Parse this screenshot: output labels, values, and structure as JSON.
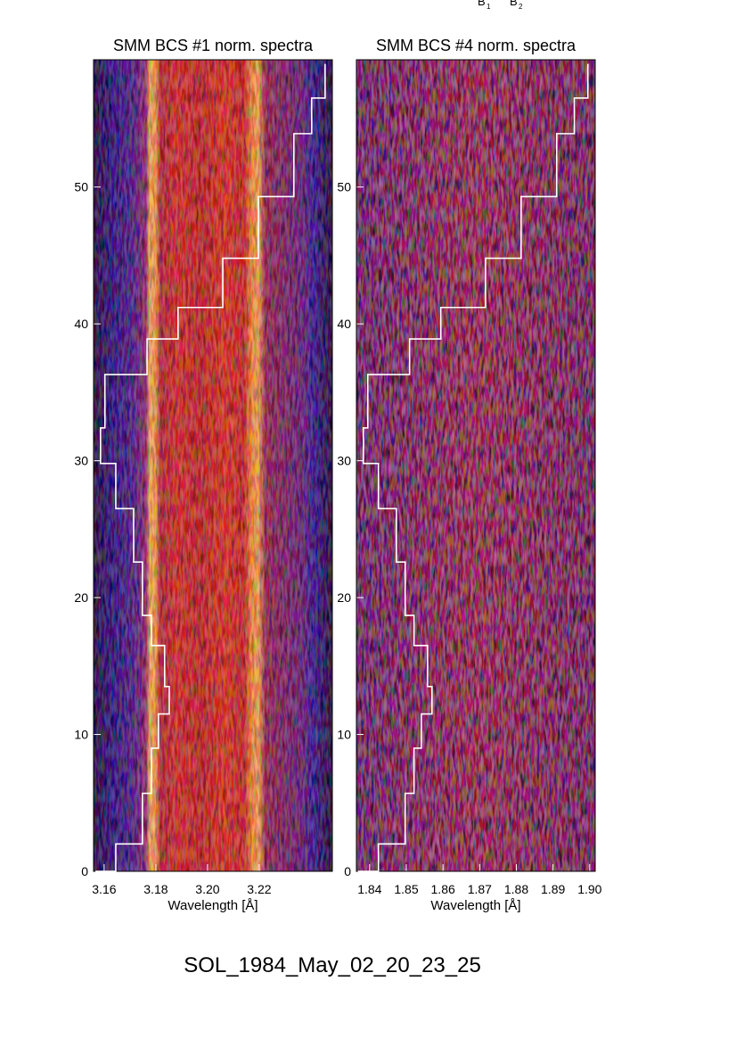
{
  "top_labels": [
    {
      "text": "B",
      "sub": "1"
    },
    {
      "text": "B",
      "sub": "2"
    }
  ],
  "figure_title": "SOL_1984_May_02_20_23_25",
  "chart_data": [
    {
      "type": "line",
      "title": "SMM BCS #1 norm. spectra",
      "x_label": "Wavelength [Å]",
      "xlim": [
        3.1559,
        3.2483
      ],
      "ylim": [
        0,
        59.3
      ],
      "xticks": [
        3.16,
        3.18,
        {
          "value": 3.2,
          "label": "3.20"
        },
        3.22
      ],
      "yticks": [
        0,
        10,
        20,
        30,
        40,
        50
      ],
      "series": [
        {
          "color": "#ffffff",
          "x": [
            3.1566,
            3.1645,
            3.1748,
            3.1783,
            3.181,
            3.1852,
            3.1834,
            3.1783,
            3.1748,
            3.1714,
            3.1645,
            3.1586,
            3.1603,
            3.1766,
            3.1886,
            3.2059,
            3.2197,
            3.2334,
            3.2403,
            3.2455
          ],
          "values": [
            0,
            2,
            5.7,
            9,
            11.5,
            13.5,
            16.5,
            18.7,
            22.6,
            26.5,
            29.8,
            32.4,
            36.3,
            38.9,
            41.2,
            44.8,
            49.3,
            53.9,
            56.5,
            59
          ]
        }
      ]
    },
    {
      "type": "line",
      "title": "SMM BCS #4 norm. spectra",
      "x_label": "Wavelength [Å]",
      "xlim": [
        1.8364,
        1.9015
      ],
      "ylim": [
        0,
        59.3
      ],
      "xticks": [
        1.84,
        1.85,
        1.86,
        1.87,
        1.88,
        1.89,
        {
          "value": 1.9,
          "label": "1.90"
        }
      ],
      "yticks": [
        0,
        10,
        20,
        30,
        40,
        50
      ],
      "series": [
        {
          "color": "#ffffff",
          "x": [
            1.8368,
            1.8424,
            1.8497,
            1.8521,
            1.8541,
            1.857,
            1.8558,
            1.8521,
            1.8497,
            1.8473,
            1.8424,
            1.8383,
            1.8395,
            1.8509,
            1.8594,
            1.8716,
            1.8813,
            1.891,
            1.8958,
            1.8995
          ],
          "values": [
            0,
            2,
            5.7,
            9,
            11.5,
            13.5,
            16.5,
            18.7,
            22.6,
            26.5,
            29.8,
            32.4,
            36.3,
            38.9,
            41.2,
            44.8,
            49.3,
            53.9,
            56.5,
            59
          ]
        }
      ]
    }
  ]
}
